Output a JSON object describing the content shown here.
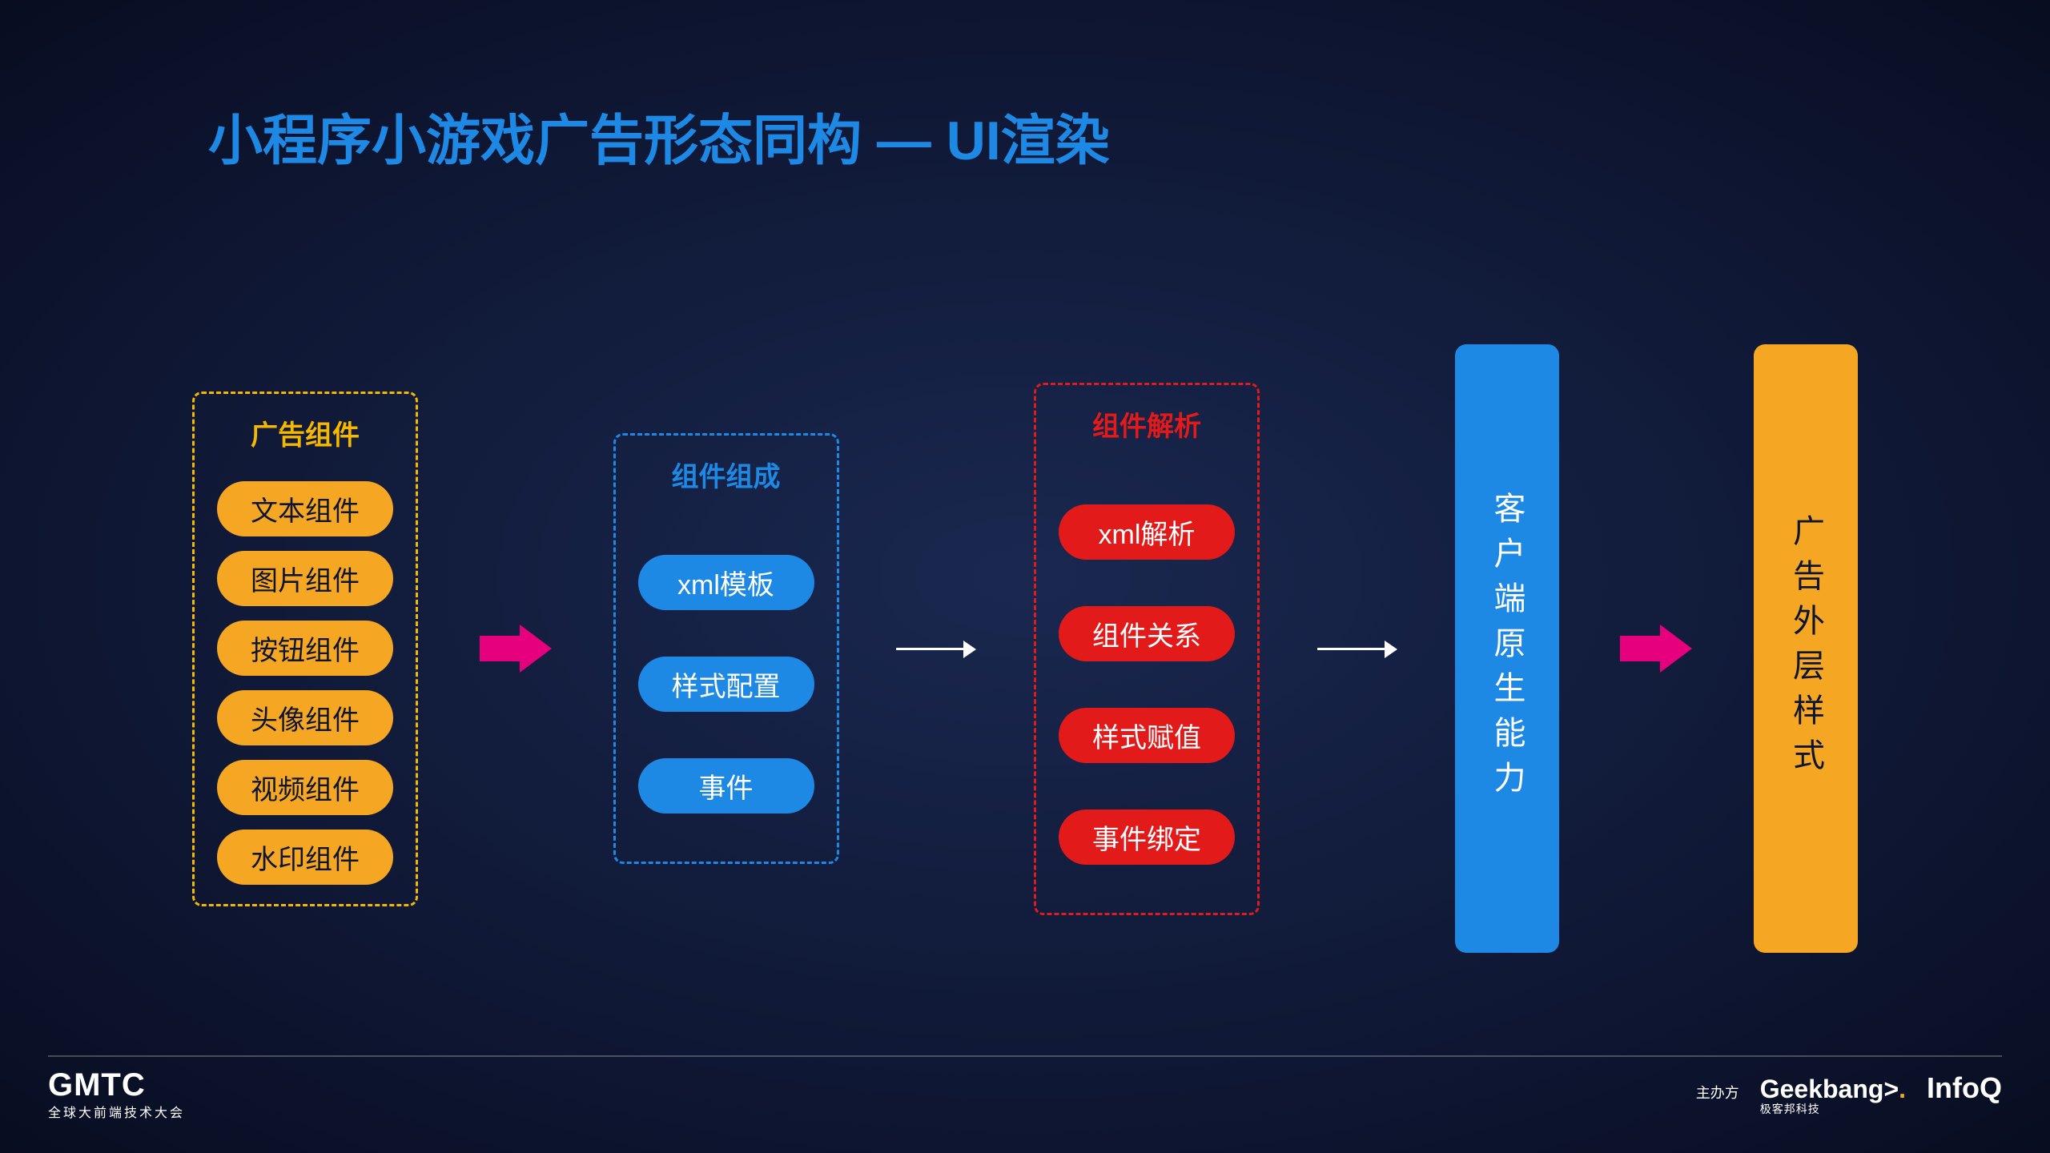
{
  "title": "小程序小游戏广告形态同构 — UI渲染",
  "colors": {
    "background_center": "#1a2850",
    "background_edge": "#080d20",
    "title_color": "#1e88e5",
    "yellow": "#f5a623",
    "yellow_border": "#f5b800",
    "blue": "#1e88e5",
    "red": "#e21a1a",
    "pink_arrow": "#e6007e",
    "white": "#ffffff"
  },
  "layout": {
    "type": "flowchart",
    "direction": "left-to-right",
    "columns": 5,
    "arrows": [
      "pink",
      "white",
      "white",
      "pink"
    ]
  },
  "col1": {
    "title": "广告组件",
    "border_color": "#f5b800",
    "title_color": "#f5b800",
    "pill_bg": "#f5a623",
    "items": [
      "文本组件",
      "图片组件",
      "按钮组件",
      "头像组件",
      "视频组件",
      "水印组件"
    ]
  },
  "col2": {
    "title": "组件组成",
    "border_color": "#1e88e5",
    "title_color": "#1e88e5",
    "pill_bg": "#1e88e5",
    "items": [
      "xml模板",
      "样式配置",
      "事件"
    ]
  },
  "col3": {
    "title": "组件解析",
    "border_color": "#e21a1a",
    "title_color": "#e21a1a",
    "pill_bg": "#e21a1a",
    "items": [
      "xml解析",
      "组件关系",
      "样式赋值",
      "事件绑定"
    ]
  },
  "col4": {
    "bg": "#1e88e5",
    "text": "客户端原生能力"
  },
  "col5": {
    "bg": "#f5a623",
    "text": "广告外层样式"
  },
  "footer": {
    "left_logo": "GMTC",
    "left_sub": "全球大前端技术大会",
    "host_label": "主办方",
    "sponsor1": "Geekbang",
    "sponsor1_sub": "极客邦科技",
    "sponsor2": "InfoQ"
  },
  "typography": {
    "title_fontsize": 68,
    "box_title_fontsize": 34,
    "pill_fontsize": 34,
    "vertical_fontsize": 40
  }
}
